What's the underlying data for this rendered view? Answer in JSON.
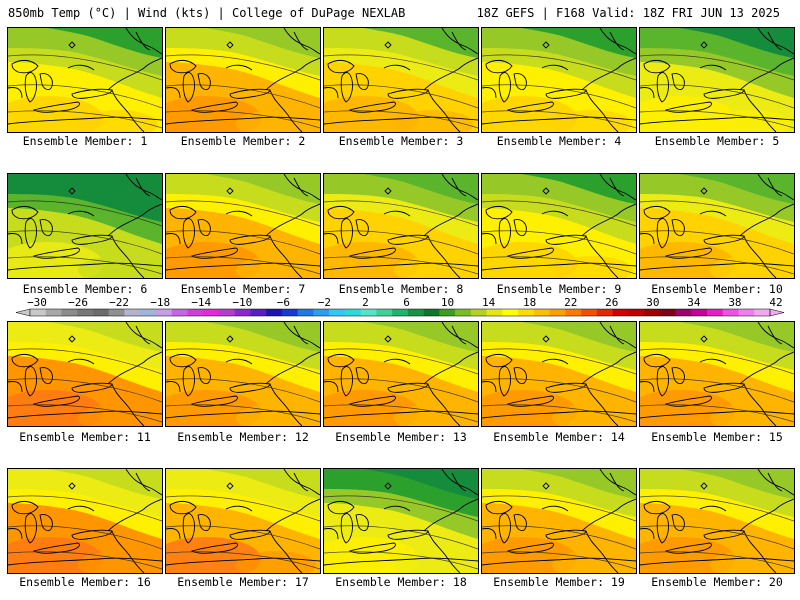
{
  "header": {
    "title_left": "850mb Temp (°C) | Wind (kts) | College of DuPage NEXLAB",
    "title_right": "18Z GEFS | F168 Valid: 18Z FRI JUN 13 2025"
  },
  "member_caption_prefix": "Ensemble Member: ",
  "members": [
    {
      "id": "1",
      "caption": "Ensemble Member: 1",
      "warmth": 0.45
    },
    {
      "id": "2",
      "caption": "Ensemble Member: 2",
      "warmth": 0.62
    },
    {
      "id": "3",
      "caption": "Ensemble Member: 3",
      "warmth": 0.55
    },
    {
      "id": "4",
      "caption": "Ensemble Member: 4",
      "warmth": 0.45
    },
    {
      "id": "5",
      "caption": "Ensemble Member: 5",
      "warmth": 0.35
    },
    {
      "id": "6",
      "caption": "Ensemble Member: 6",
      "warmth": 0.22
    },
    {
      "id": "7",
      "caption": "Ensemble Member: 7",
      "warmth": 0.62
    },
    {
      "id": "8",
      "caption": "Ensemble Member: 8",
      "warmth": 0.5
    },
    {
      "id": "9",
      "caption": "Ensemble Member: 9",
      "warmth": 0.45
    },
    {
      "id": "10",
      "caption": "Ensemble Member: 10",
      "warmth": 0.52
    },
    {
      "id": "11",
      "caption": "Ensemble Member: 11",
      "warmth": 0.7
    },
    {
      "id": "12",
      "caption": "Ensemble Member: 12",
      "warmth": 0.62
    },
    {
      "id": "13",
      "caption": "Ensemble Member: 13",
      "warmth": 0.62
    },
    {
      "id": "14",
      "caption": "Ensemble Member: 14",
      "warmth": 0.62
    },
    {
      "id": "15",
      "caption": "Ensemble Member: 15",
      "warmth": 0.62
    },
    {
      "id": "16",
      "caption": "Ensemble Member: 16",
      "warmth": 0.7
    },
    {
      "id": "17",
      "caption": "Ensemble Member: 17",
      "warmth": 0.68
    },
    {
      "id": "18",
      "caption": "Ensemble Member: 18",
      "warmth": 0.3
    },
    {
      "id": "19",
      "caption": "Ensemble Member: 19",
      "warmth": 0.62
    },
    {
      "id": "20",
      "caption": "Ensemble Member: 20",
      "warmth": 0.62
    }
  ],
  "colorbar": {
    "ticks": [
      "-30",
      "-26",
      "-22",
      "-18",
      "-14",
      "-10",
      "-6",
      "-2",
      "2",
      "6",
      "10",
      "14",
      "18",
      "22",
      "26",
      "30",
      "34",
      "38",
      "42"
    ],
    "colors": [
      "#c8c8c8",
      "#a8a8a8",
      "#8c8c8c",
      "#787878",
      "#6c6c6c",
      "#909090",
      "#b4b4d2",
      "#a0b4dc",
      "#c89ce6",
      "#c864e6",
      "#d23cdc",
      "#e628dc",
      "#b43cd2",
      "#8c28d2",
      "#5a1ec8",
      "#1e14b4",
      "#143cd2",
      "#1e78e6",
      "#28a0f0",
      "#32c8f5",
      "#28dcdc",
      "#50e6c8",
      "#3cd296",
      "#1eb46e",
      "#129646",
      "#0a7828",
      "#3ca01e",
      "#78be1e",
      "#b4d21e",
      "#e6e614",
      "#ffff00",
      "#ffdc00",
      "#ffbe00",
      "#ffa000",
      "#ff7800",
      "#f55000",
      "#e62800",
      "#d20000",
      "#be0000",
      "#a00000",
      "#820014",
      "#a0006e",
      "#c8009b",
      "#e61ec8",
      "#f050e6",
      "#f07cf0",
      "#f0a8f0"
    ]
  }
}
